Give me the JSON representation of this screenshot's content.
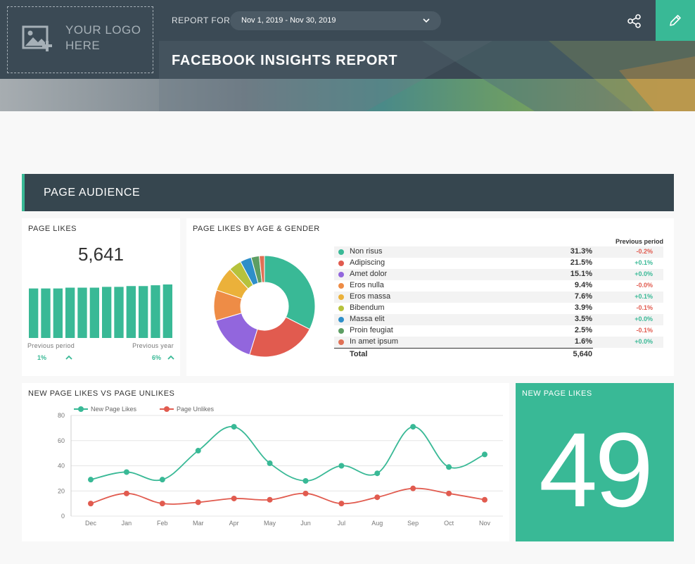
{
  "header": {
    "logo_text": "YOUR LOGO HERE",
    "report_for_label": "REPORT FOR",
    "date_range": "Nov 1, 2019 - Nov 30, 2019",
    "title": "FACEBOOK INSIGHTS REPORT",
    "accent_color": "#39b996"
  },
  "section": {
    "title": "PAGE AUDIENCE"
  },
  "page_likes": {
    "title": "PAGE LIKES",
    "value": "5,641",
    "sparkline": [
      62,
      62,
      62,
      63,
      63,
      63,
      64,
      64,
      65,
      65,
      66,
      67
    ],
    "previous_period_label": "Previous period",
    "previous_period_value": "1%",
    "previous_year_label": "Previous year",
    "previous_year_value": "6%"
  },
  "age_gender": {
    "title": "PAGE LIKES BY AGE & GENDER",
    "previous_period_header": "Previous period",
    "rows": [
      {
        "name": "Non risus",
        "pct": "31.3%",
        "change": "-0.2%",
        "value": 31.3,
        "color": "#39b996"
      },
      {
        "name": "Adipiscing",
        "pct": "21.5%",
        "change": "+0.1%",
        "value": 21.5,
        "color": "#e15b4f"
      },
      {
        "name": "Amet dolor",
        "pct": "15.1%",
        "change": "+0.0%",
        "value": 15.1,
        "color": "#9266dd"
      },
      {
        "name": "Eros nulla",
        "pct": "9.4%",
        "change": "-0.0%",
        "value": 9.4,
        "color": "#ee8c46"
      },
      {
        "name": "Eros massa",
        "pct": "7.6%",
        "change": "+0.1%",
        "value": 7.6,
        "color": "#ebb13a"
      },
      {
        "name": "Bibendum",
        "pct": "3.9%",
        "change": "-0.1%",
        "value": 3.9,
        "color": "#b6c23c"
      },
      {
        "name": "Massa elit",
        "pct": "3.5%",
        "change": "+0.0%",
        "value": 3.5,
        "color": "#2e8fc9"
      },
      {
        "name": "Proin feugiat",
        "pct": "2.5%",
        "change": "-0.1%",
        "value": 2.5,
        "color": "#5d9e63"
      },
      {
        "name": "In amet ipsum",
        "pct": "1.6%",
        "change": "+0.0%",
        "value": 1.6,
        "color": "#e07055"
      }
    ],
    "total_label": "Total",
    "total_value": "5,640"
  },
  "chart_data": {
    "type": "line",
    "title": "NEW PAGE LIKES VS PAGE UNLIKES",
    "categories": [
      "Dec",
      "Jan",
      "Feb",
      "Mar",
      "Apr",
      "May",
      "Jun",
      "Jul",
      "Aug",
      "Sep",
      "Oct",
      "Nov"
    ],
    "series": [
      {
        "name": "New Page Likes",
        "color": "#39b996",
        "values": [
          29,
          35,
          29,
          52,
          71,
          42,
          28,
          40,
          34,
          71,
          39,
          49
        ]
      },
      {
        "name": "Page Unlikes",
        "color": "#e15b4f",
        "values": [
          10,
          18,
          10,
          11,
          14,
          13,
          18,
          10,
          15,
          22,
          18,
          13
        ]
      }
    ],
    "yticks": [
      "0",
      "20",
      "40",
      "60",
      "80"
    ],
    "ylim": [
      0,
      80
    ],
    "grid": true,
    "legend": "top-left"
  },
  "new_page_likes": {
    "title": "NEW PAGE LIKES",
    "value": "49"
  }
}
